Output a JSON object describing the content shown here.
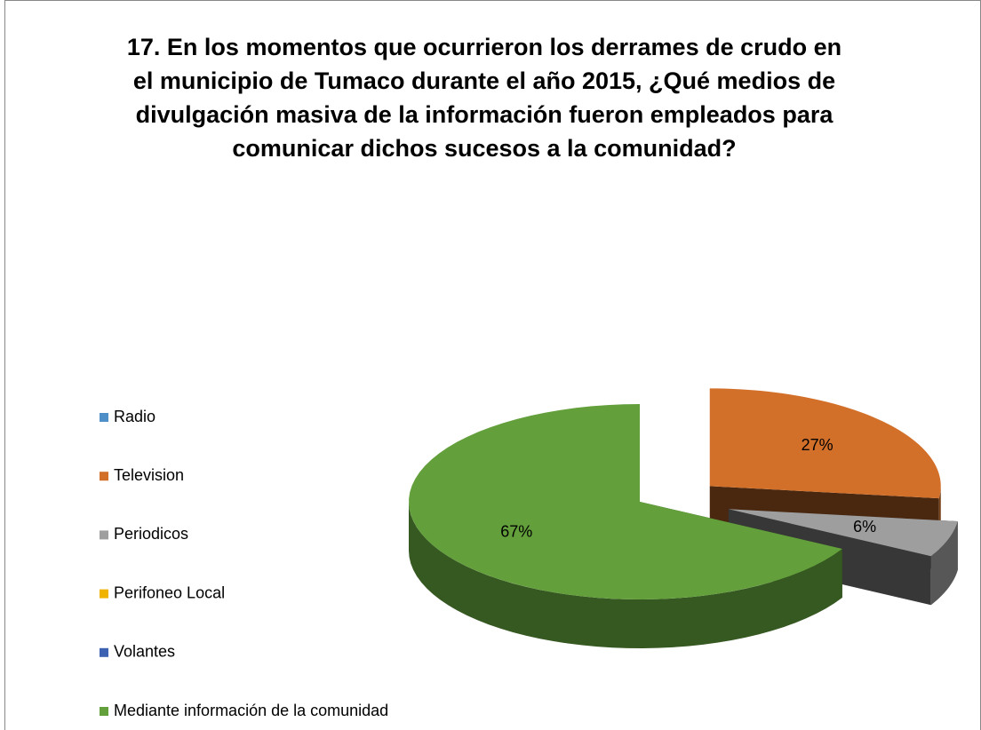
{
  "chart_data": {
    "type": "pie3d",
    "title": "17. En los momentos que ocurrieron los derrames de crudo en el municipio de Tumaco durante el año 2015, ¿Qué medios de divulgación masiva de la información fueron empleados para comunicar dichos sucesos a la comunidad?",
    "categories": [
      "Radio",
      "Television",
      "Periodicos",
      "Perifoneo Local",
      "Volantes",
      "Mediante información de la comunidad"
    ],
    "values": [
      0,
      27,
      6,
      0,
      0,
      67
    ],
    "value_labels": [
      null,
      "27%",
      "6%",
      null,
      null,
      "67%"
    ],
    "colors": [
      "#4f8fc8",
      "#d2702a",
      "#9e9e9e",
      "#efb300",
      "#3d62b2",
      "#63a03c"
    ],
    "legend": "left"
  }
}
